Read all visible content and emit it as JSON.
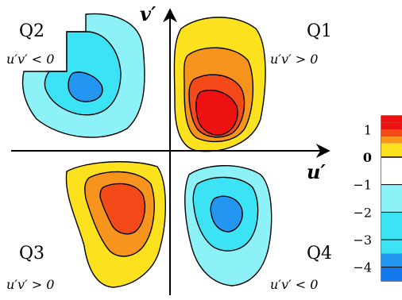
{
  "chart_data": {
    "type": "heatmap",
    "title": "",
    "xlabel": "u′",
    "ylabel": "v′",
    "quadrants": [
      {
        "id": "Q1",
        "label": "Q1",
        "condition": "u′v′ > 0",
        "sign": "positive",
        "peak_level": 1
      },
      {
        "id": "Q2",
        "label": "Q2",
        "condition": "u′v′ < 0",
        "sign": "negative",
        "peak_level": -3
      },
      {
        "id": "Q3",
        "label": "Q3",
        "condition": "u′v′ > 0",
        "sign": "positive",
        "peak_level": 0.5
      },
      {
        "id": "Q4",
        "label": "Q4",
        "condition": "u′v′ < 0",
        "sign": "negative",
        "peak_level": -3
      }
    ],
    "colorbar": {
      "ticks": [
        "1",
        "0",
        "−1",
        "−2",
        "−3",
        "−4"
      ],
      "tick_values": [
        1,
        0,
        -1,
        -2,
        -3,
        -4
      ],
      "levels": [
        1.5,
        1.25,
        1,
        0.75,
        0.5,
        0.25,
        0,
        -0.5,
        -1,
        -1.5,
        -2,
        -2.5,
        -3,
        -3.5,
        -4,
        -4.5
      ],
      "colors": {
        "red": "#ee1111",
        "orange_red": "#f44a1a",
        "orange": "#f7941d",
        "yellow": "#fce21e",
        "white": "#ffffff",
        "light_cyan": "#8cf2f7",
        "cyan": "#3ce3f4",
        "blue": "#2396f2",
        "dark_blue": "#1479ec"
      }
    }
  }
}
